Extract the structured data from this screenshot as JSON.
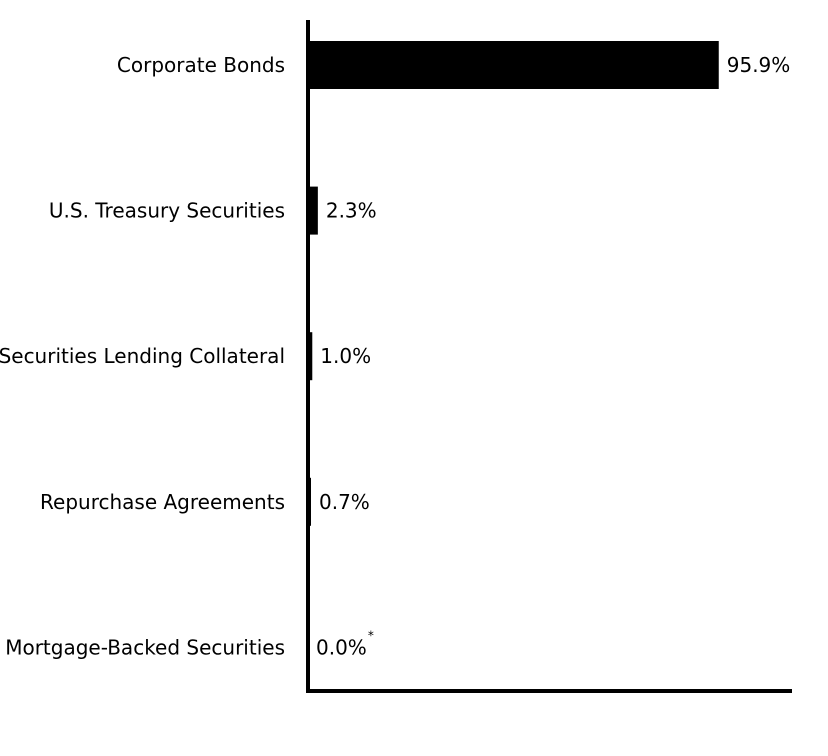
{
  "chart_data": {
    "type": "bar",
    "orientation": "horizontal",
    "title": "",
    "xlabel": "",
    "ylabel": "",
    "categories": [
      "Corporate Bonds",
      "U.S. Treasury Securities",
      "Securities Lending Collateral",
      "Repurchase Agreements",
      "Mortgage-Backed Securities"
    ],
    "values": [
      95.9,
      2.3,
      1.0,
      0.7,
      0.0
    ],
    "value_labels": [
      "95.9%",
      "2.3%",
      "1.0%",
      "0.7%",
      "0.0%"
    ],
    "value_label_notes": [
      "",
      "",
      "",
      "",
      "*"
    ],
    "xlim": [
      0,
      113
    ],
    "grid": false,
    "bar_color": "#000000",
    "axis_color": "#000000"
  }
}
